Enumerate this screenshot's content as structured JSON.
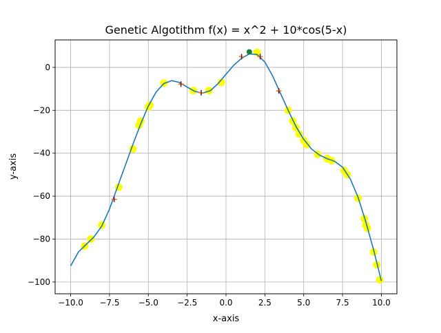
{
  "chart_data": {
    "type": "line",
    "title": "Genetic Algotithm f(x) = x^2 + 10*cos(5-x)",
    "xlabel": "x-axis",
    "ylabel": "y-axis",
    "xlim": [
      -11.0,
      11.0
    ],
    "ylim": [
      -105.5,
      12.8
    ],
    "xticks": [
      -10.0,
      -7.5,
      -5.0,
      -2.5,
      0.0,
      2.5,
      5.0,
      7.5,
      10.0
    ],
    "xtick_labels": [
      "−10.0",
      "−7.5",
      "−5.0",
      "−2.5",
      "0.0",
      "2.5",
      "5.0",
      "7.5",
      "10.0"
    ],
    "yticks": [
      0,
      -20,
      -40,
      -60,
      -80,
      -100
    ],
    "ytick_labels": [
      "0",
      "−20",
      "−40",
      "−60",
      "−80",
      "−100"
    ],
    "grid": true,
    "curve": {
      "color": "#1f77b4",
      "points": [
        [
          -10.0,
          -92.5
        ],
        [
          -9.5,
          -86.0
        ],
        [
          -9.0,
          -82.5
        ],
        [
          -8.5,
          -79.0
        ],
        [
          -8.0,
          -74.0
        ],
        [
          -7.5,
          -66.0
        ],
        [
          -7.0,
          -56.0
        ],
        [
          -6.5,
          -46.0
        ],
        [
          -6.0,
          -36.0
        ],
        [
          -5.5,
          -26.5
        ],
        [
          -5.0,
          -18.0
        ],
        [
          -4.5,
          -11.5
        ],
        [
          -4.0,
          -7.5
        ],
        [
          -3.5,
          -6.2
        ],
        [
          -3.0,
          -7.0
        ],
        [
          -2.5,
          -9.2
        ],
        [
          -2.0,
          -11.2
        ],
        [
          -1.5,
          -12.0
        ],
        [
          -1.0,
          -10.8
        ],
        [
          -0.5,
          -7.5
        ],
        [
          0.0,
          -3.2
        ],
        [
          0.5,
          1.0
        ],
        [
          1.0,
          4.2
        ],
        [
          1.5,
          6.3
        ],
        [
          2.0,
          6.0
        ],
        [
          2.5,
          2.5
        ],
        [
          3.0,
          -4.0
        ],
        [
          3.5,
          -12.0
        ],
        [
          4.0,
          -20.0
        ],
        [
          4.5,
          -27.5
        ],
        [
          5.0,
          -33.5
        ],
        [
          5.5,
          -38.0
        ],
        [
          6.0,
          -40.8
        ],
        [
          6.5,
          -42.5
        ],
        [
          7.0,
          -43.8
        ],
        [
          7.5,
          -46.5
        ],
        [
          8.0,
          -52.0
        ],
        [
          8.5,
          -60.5
        ],
        [
          9.0,
          -72.0
        ],
        [
          9.5,
          -85.0
        ],
        [
          10.0,
          -99.5
        ]
      ]
    },
    "population": {
      "color": "#ffff00",
      "points": [
        [
          -9.1,
          -83.3
        ],
        [
          -8.7,
          -80.0
        ],
        [
          -8.0,
          -73.5
        ],
        [
          -6.9,
          -55.8
        ],
        [
          -6.0,
          -38.0
        ],
        [
          -5.6,
          -27.0
        ],
        [
          -5.5,
          -25.0
        ],
        [
          -5.0,
          -18.5
        ],
        [
          -4.9,
          -17.5
        ],
        [
          -4.0,
          -7.3
        ],
        [
          -2.1,
          -10.8
        ],
        [
          -1.1,
          -10.8
        ],
        [
          -0.3,
          -7.0
        ],
        [
          2.0,
          7.0
        ],
        [
          4.0,
          -20.0
        ],
        [
          4.3,
          -25.0
        ],
        [
          4.5,
          -28.0
        ],
        [
          4.7,
          -31.0
        ],
        [
          5.0,
          -34.0
        ],
        [
          5.2,
          -36.0
        ],
        [
          5.9,
          -40.5
        ],
        [
          6.5,
          -42.5
        ],
        [
          6.8,
          -43.5
        ],
        [
          7.6,
          -48.0
        ],
        [
          7.8,
          -50.0
        ],
        [
          8.5,
          -61.0
        ],
        [
          8.9,
          -70.5
        ],
        [
          9.0,
          -73.5
        ],
        [
          9.1,
          -75.0
        ],
        [
          9.5,
          -86.0
        ],
        [
          9.7,
          -92.0
        ],
        [
          9.9,
          -99.0
        ]
      ]
    },
    "elite": {
      "color": "#d62728",
      "points": [
        [
          -7.2,
          -61.5
        ],
        [
          -2.9,
          -7.8
        ],
        [
          -1.6,
          -11.8
        ],
        [
          1.0,
          5.0
        ],
        [
          2.2,
          5.0
        ],
        [
          3.4,
          -11.0
        ]
      ]
    },
    "best": {
      "color": "#1b7f3a",
      "points": [
        [
          1.5,
          7.2
        ]
      ]
    }
  }
}
